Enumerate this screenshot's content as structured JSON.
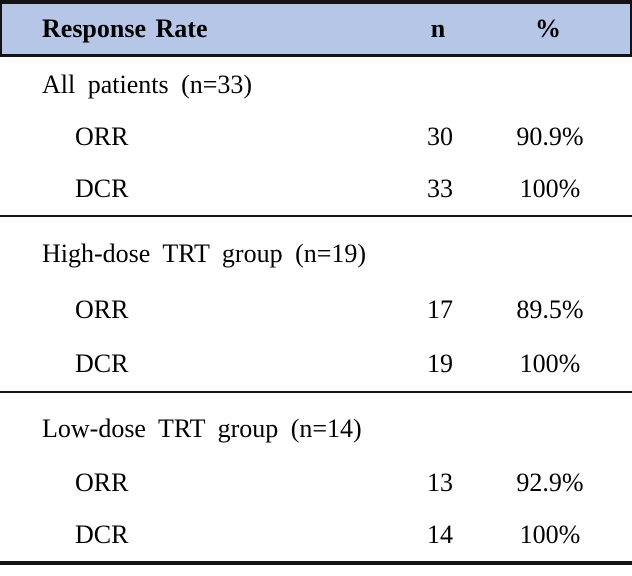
{
  "table": {
    "header": {
      "label": "Response Rate",
      "n": "n",
      "pct": "%"
    },
    "sections": [
      {
        "label": "All patients (n=33)",
        "rows": [
          {
            "name": "ORR",
            "n": "30",
            "pct": "90.9%"
          },
          {
            "name": "DCR",
            "n": "33",
            "pct": "100%"
          }
        ]
      },
      {
        "label": "High-dose TRT group (n=19)",
        "rows": [
          {
            "name": "ORR",
            "n": "17",
            "pct": "89.5%"
          },
          {
            "name": "DCR",
            "n": "19",
            "pct": "100%"
          }
        ]
      },
      {
        "label": "Low-dose TRT group (n=14)",
        "rows": [
          {
            "name": "ORR",
            "n": "13",
            "pct": "92.9%"
          },
          {
            "name": "DCR",
            "n": "14",
            "pct": "100%"
          }
        ]
      }
    ],
    "colors": {
      "header_bg": "#b5c6e6",
      "border": "#141414",
      "text": "#000000"
    }
  }
}
